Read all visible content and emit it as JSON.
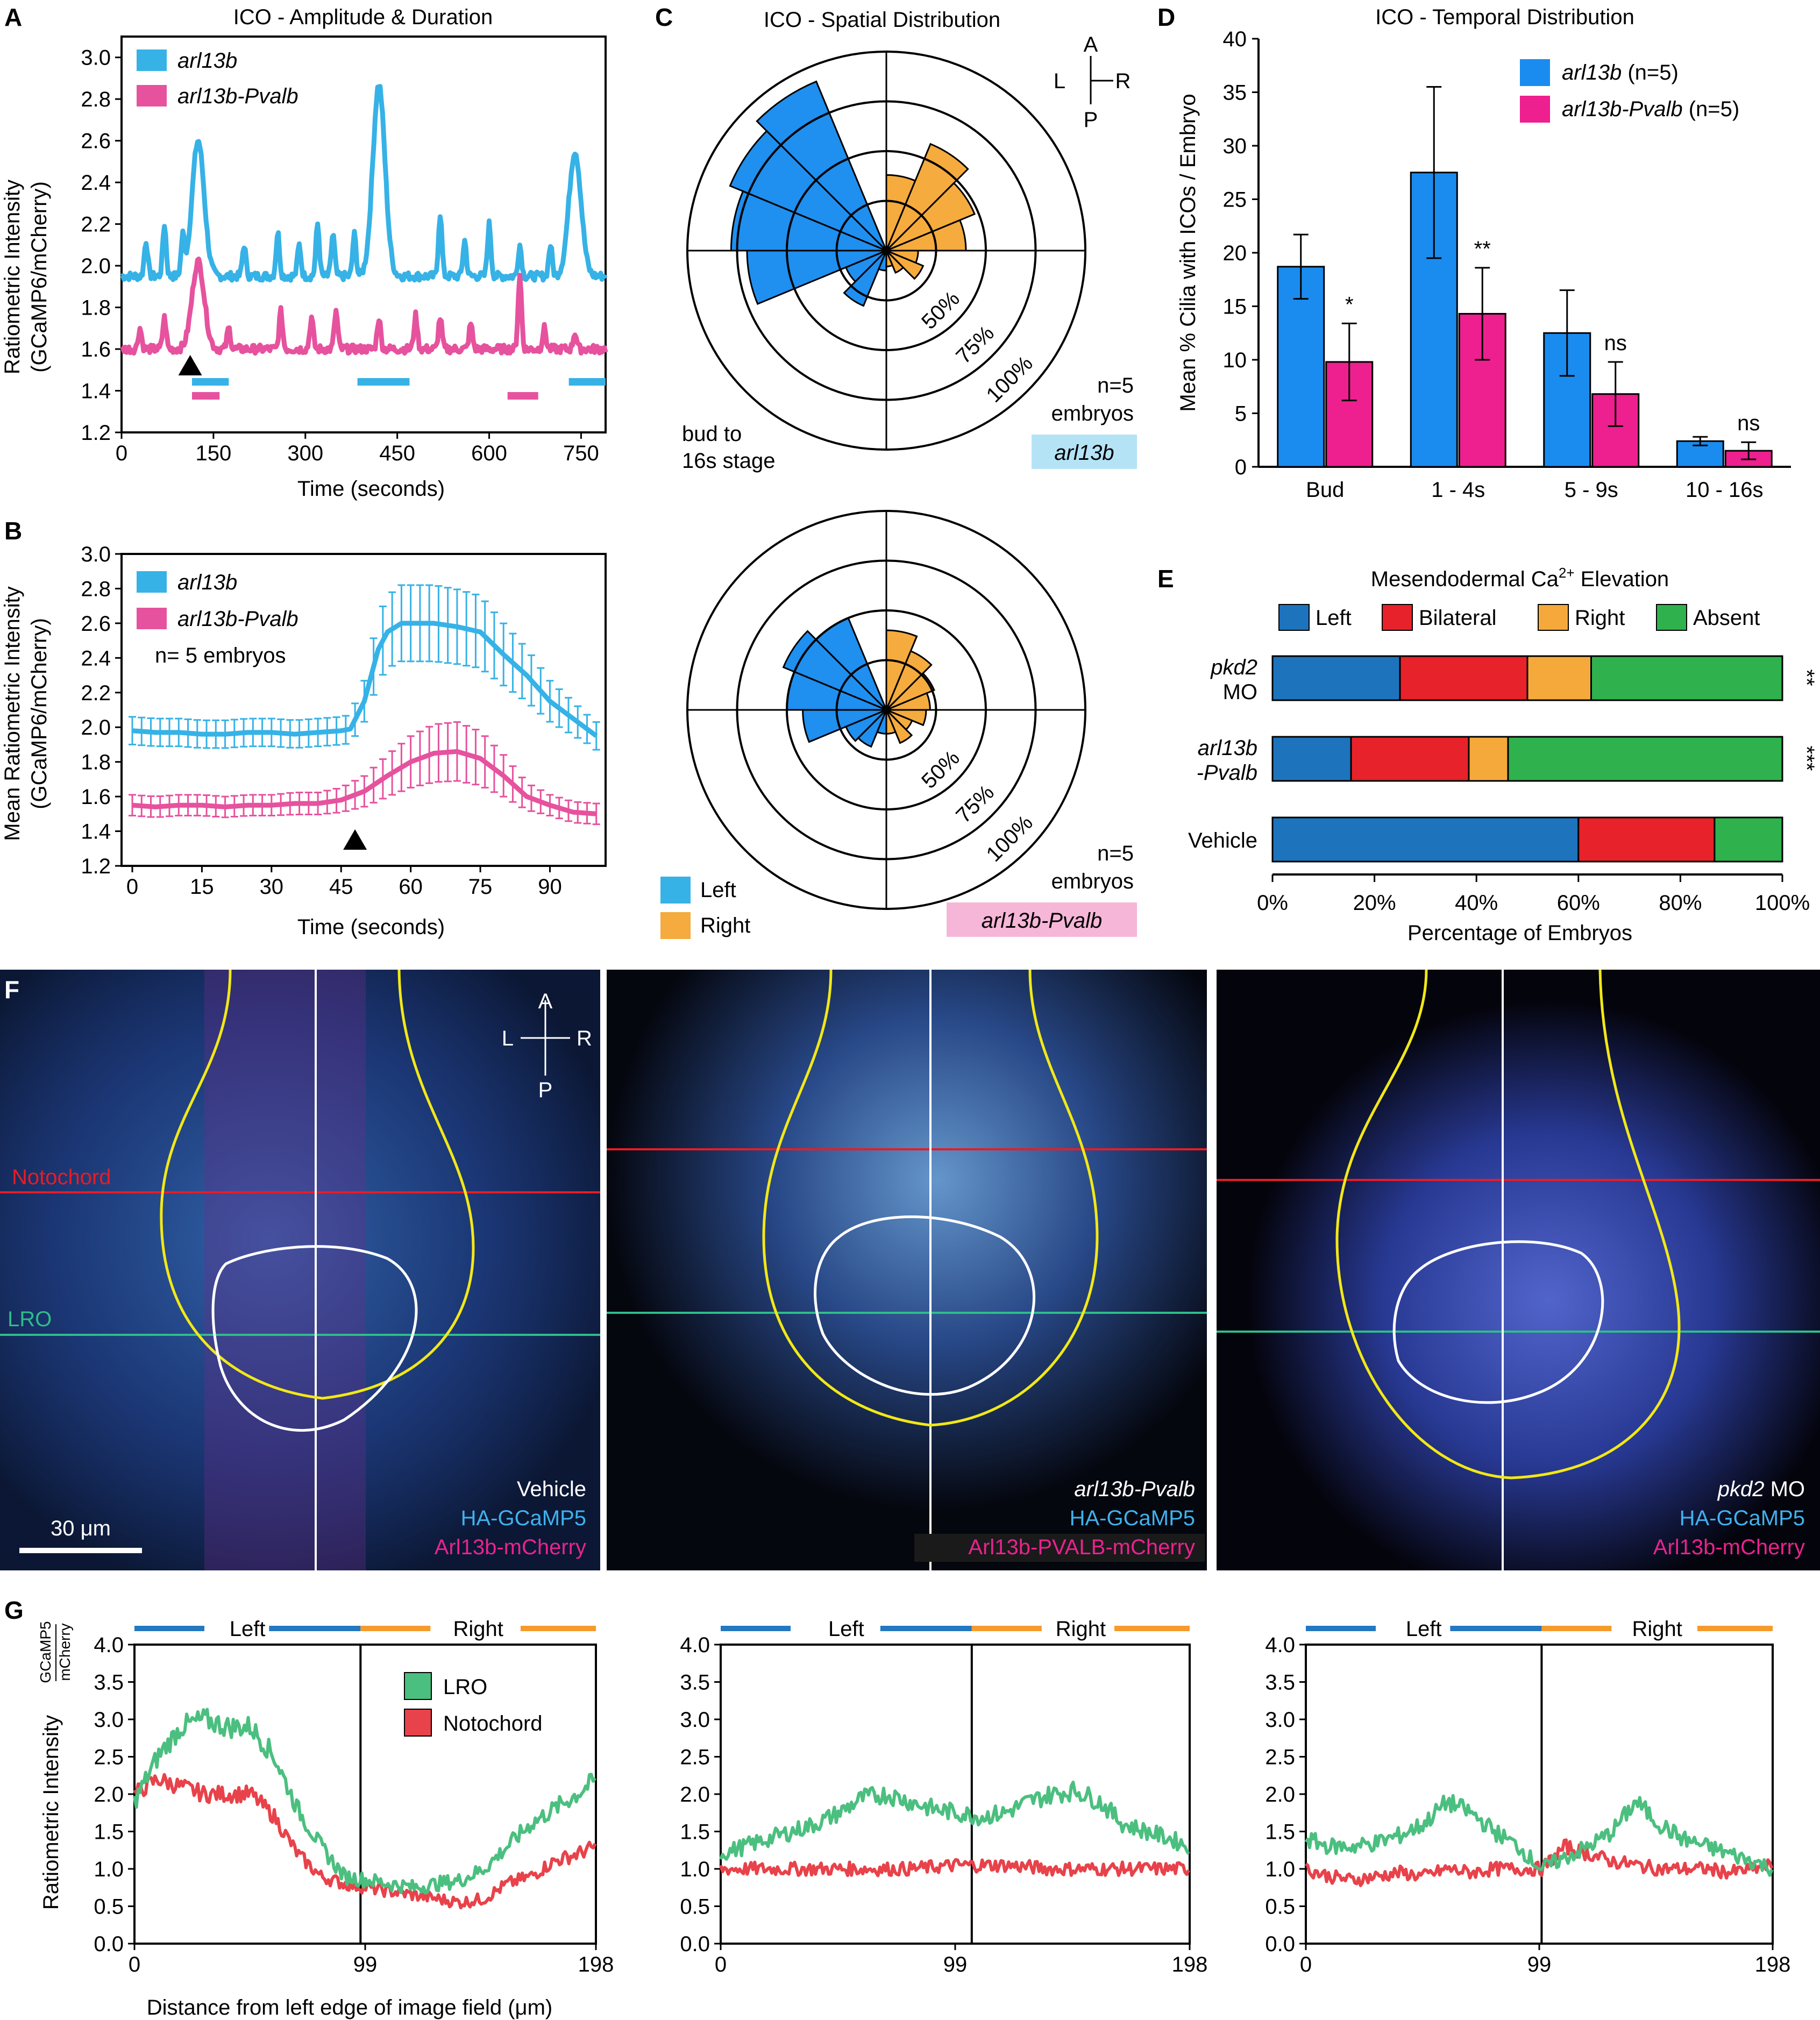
{
  "panel_labels": {
    "a": "A",
    "b": "B",
    "c": "C",
    "d": "D",
    "e": "E",
    "f": "F",
    "g": "G"
  },
  "colors": {
    "arl13b": "#36b2e6",
    "pvalb": "#e6529e",
    "left": "#1f8ff0",
    "right": "#f5ab3d",
    "bar_blue": "#1a8cf0",
    "bar_pink": "#ee1f8f",
    "e_left": "#1e73bd",
    "e_bilateral": "#e8222a",
    "e_right": "#f6a93b",
    "e_absent": "#2fb24e",
    "lro": "#4bbf7f",
    "notochord": "#e8424a",
    "left_bar": "#2378c0",
    "right_bar": "#f59a2d"
  },
  "chart_data": [
    {
      "id": "A",
      "type": "line",
      "title": "ICO - Amplitude & Duration",
      "xlabel": "Time (seconds)",
      "ylabel": [
        "Ratiometric Intensity",
        "(GCaMP6/mCherry)"
      ],
      "xlim": [
        0,
        790
      ],
      "ylim": [
        1.2,
        3.1
      ],
      "xticks": [
        "0",
        "150",
        "300",
        "450",
        "600",
        "750"
      ],
      "yticks": [
        "1.2",
        "1.4",
        "1.6",
        "1.8",
        "2.0",
        "2.2",
        "2.4",
        "2.6",
        "2.8",
        "3.0"
      ],
      "series": [
        {
          "name": "arl13b",
          "baseline": 1.95,
          "peaks": [
            [
              40,
              2.12
            ],
            [
              70,
              2.2
            ],
            [
              100,
              2.13
            ],
            [
              125,
              2.6
            ],
            [
              200,
              2.1
            ],
            [
              255,
              2.16
            ],
            [
              290,
              2.1
            ],
            [
              320,
              2.2
            ],
            [
              345,
              2.15
            ],
            [
              380,
              2.15
            ],
            [
              420,
              2.87
            ],
            [
              520,
              2.25
            ],
            [
              560,
              2.12
            ],
            [
              600,
              2.2
            ],
            [
              650,
              2.1
            ],
            [
              700,
              2.1
            ],
            [
              740,
              2.55
            ]
          ]
        },
        {
          "name": "arl13b-Pvalb",
          "baseline": 1.6,
          "peaks": [
            [
              30,
              1.7
            ],
            [
              70,
              1.75
            ],
            [
              125,
              2.02
            ],
            [
              175,
              1.7
            ],
            [
              260,
              1.78
            ],
            [
              310,
              1.75
            ],
            [
              350,
              1.78
            ],
            [
              420,
              1.75
            ],
            [
              480,
              1.76
            ],
            [
              520,
              1.75
            ],
            [
              570,
              1.72
            ],
            [
              650,
              1.95
            ],
            [
              690,
              1.7
            ],
            [
              740,
              1.68
            ]
          ]
        }
      ],
      "event_bars": {
        "arl13b": [
          [
            115,
            175
          ],
          [
            385,
            470
          ],
          [
            730,
            790
          ]
        ],
        "arl13b-Pvalb": [
          [
            115,
            160
          ],
          [
            630,
            680
          ]
        ]
      },
      "arrow_x": 112
    },
    {
      "id": "B",
      "type": "line",
      "xlabel": "Time (seconds)",
      "ylabel": [
        "Mean Ratiometric Intensity",
        "(GCaMP6/mCherry)"
      ],
      "xlim": [
        0,
        102
      ],
      "ylim": [
        1.2,
        3.0
      ],
      "xticks": [
        "0",
        "15",
        "30",
        "45",
        "60",
        "75",
        "90"
      ],
      "yticks": [
        "1.2",
        "1.4",
        "1.6",
        "1.8",
        "2.0",
        "2.2",
        "2.4",
        "2.6",
        "2.8",
        "3.0"
      ],
      "annotation": "n= 5 embryos",
      "series": [
        {
          "name": "arl13b",
          "x": [
            0,
            5,
            10,
            15,
            20,
            25,
            30,
            35,
            40,
            45,
            47,
            50,
            53,
            55,
            58,
            60,
            65,
            70,
            75,
            80,
            85,
            90,
            95,
            100
          ],
          "y": [
            1.98,
            1.97,
            1.97,
            1.96,
            1.96,
            1.97,
            1.97,
            1.96,
            1.97,
            1.98,
            1.99,
            2.15,
            2.45,
            2.55,
            2.6,
            2.6,
            2.6,
            2.58,
            2.55,
            2.42,
            2.3,
            2.15,
            2.05,
            1.95
          ],
          "err": 0.08,
          "err_peak": 0.22
        },
        {
          "name": "arl13b-Pvalb",
          "x": [
            0,
            5,
            10,
            15,
            20,
            25,
            30,
            35,
            40,
            45,
            47,
            50,
            55,
            60,
            65,
            70,
            75,
            80,
            85,
            90,
            95,
            100
          ],
          "y": [
            1.55,
            1.54,
            1.55,
            1.55,
            1.54,
            1.55,
            1.55,
            1.56,
            1.56,
            1.58,
            1.6,
            1.63,
            1.72,
            1.8,
            1.85,
            1.86,
            1.82,
            1.72,
            1.6,
            1.55,
            1.51,
            1.5
          ],
          "err": 0.06,
          "err_peak": 0.17
        }
      ],
      "arrow_x": 48
    },
    {
      "id": "C1",
      "type": "rose",
      "title": "ICO - Spatial Distribution",
      "rings": [
        "50%",
        "75%",
        "100%"
      ],
      "left_wedges": [
        0.0,
        0.92,
        0.85,
        0.78,
        0.7,
        0.22,
        0.3,
        0.1
      ],
      "right_wedges": [
        0.38,
        0.58,
        0.48,
        0.4,
        0.16,
        0.2,
        0.12,
        0.08
      ],
      "note_top": "bud to",
      "note_bottom": "16s stage",
      "n": "n=5",
      "n2": "embryos",
      "label": "arl13b"
    },
    {
      "id": "C2",
      "type": "rose",
      "rings": [
        "50%",
        "75%",
        "100%"
      ],
      "left_wedges": [
        0.0,
        0.5,
        0.56,
        0.5,
        0.42,
        0.22,
        0.2,
        0.12
      ],
      "right_wedges": [
        0.4,
        0.32,
        0.26,
        0.22,
        0.2,
        0.14,
        0.18,
        0.12
      ],
      "n": "n=5",
      "n2": "embryos",
      "label": "arl13b-Pvalb",
      "legend": [
        "Left",
        "Right"
      ]
    },
    {
      "id": "D",
      "type": "bar",
      "title": "ICO - Temporal Distribution",
      "ylabel": "Mean % Cilia with ICOs / Embryo",
      "ylim": [
        0,
        40
      ],
      "yticks": [
        "0",
        "5",
        "10",
        "15",
        "20",
        "25",
        "30",
        "35",
        "40"
      ],
      "categories": [
        "Bud",
        "1 - 4s",
        "5 - 9s",
        "10 - 16s"
      ],
      "series": [
        {
          "name": "arl13b",
          "n": "(n=5)",
          "values": [
            18.7,
            27.5,
            12.5,
            2.4
          ],
          "errors": [
            3.0,
            8.0,
            4.0,
            0.4
          ]
        },
        {
          "name": "arl13b-Pvalb",
          "n": "(n=5)",
          "values": [
            9.8,
            14.3,
            6.8,
            1.5
          ],
          "errors": [
            3.6,
            4.3,
            3.0,
            0.8
          ]
        }
      ],
      "significance": [
        "*",
        "**",
        "ns",
        "ns"
      ]
    },
    {
      "id": "E",
      "type": "stacked_bar",
      "title": "Mesendodermal Ca2+ Elevation",
      "xlabel": "Percentage of Embryos",
      "xticks": [
        "0%",
        "20%",
        "40%",
        "60%",
        "80%",
        "100%"
      ],
      "segments": [
        "Left",
        "Bilateral",
        "Right",
        "Absent"
      ],
      "rows": [
        {
          "label1": "pkd2",
          "label2": "MO",
          "values": [
            25,
            25,
            12.5,
            37.5
          ],
          "sig": "**"
        },
        {
          "label1": "arl13b",
          "label2": "-Pvalb",
          "values": [
            15.4,
            23.1,
            7.7,
            53.8
          ],
          "sig": "***"
        },
        {
          "label1": "Vehicle",
          "label2": "",
          "values": [
            60,
            26.7,
            0,
            13.3
          ],
          "sig": ""
        }
      ]
    },
    {
      "id": "G",
      "type": "line",
      "ylabel": "Ratiometric Intensity",
      "ylabel_frac_num": "GCaMP5",
      "ylabel_frac_den": "mCherry",
      "xlabel": "Distance from left edge of image field (μm)",
      "xlim": [
        0,
        198
      ],
      "ylim": [
        0,
        4
      ],
      "xticks": [
        "0",
        "99",
        "198"
      ],
      "yticks": [
        "0.0",
        "0.5",
        "1.0",
        "1.5",
        "2.0",
        "2.5",
        "3.0",
        "3.5",
        "4.0"
      ],
      "side_labels": [
        "Left",
        "Right"
      ],
      "legend": [
        "LRO",
        "Notochord"
      ],
      "panels": [
        {
          "divider": 97,
          "LRO": {
            "x": [
              0,
              10,
              20,
              30,
              40,
              50,
              60,
              70,
              80,
              90,
              100,
              110,
              120,
              130,
              140,
              150,
              160,
              170,
              180,
              190,
              198
            ],
            "y": [
              1.9,
              2.5,
              2.9,
              3.0,
              2.9,
              2.9,
              2.5,
              1.8,
              1.3,
              0.9,
              0.85,
              0.8,
              0.75,
              0.8,
              0.85,
              1.0,
              1.3,
              1.6,
              1.8,
              2.0,
              2.2
            ]
          },
          "Notochord": {
            "x": [
              0,
              10,
              20,
              30,
              40,
              50,
              60,
              70,
              80,
              90,
              100,
              110,
              120,
              130,
              140,
              150,
              160,
              170,
              180,
              190,
              198
            ],
            "y": [
              2.0,
              2.2,
              2.1,
              2.0,
              2.0,
              2.0,
              1.7,
              1.2,
              0.9,
              0.8,
              0.75,
              0.7,
              0.65,
              0.6,
              0.55,
              0.6,
              0.8,
              0.9,
              1.1,
              1.2,
              1.3
            ]
          }
        },
        {
          "divider": 106,
          "LRO": {
            "x": [
              0,
              10,
              20,
              30,
              40,
              50,
              60,
              70,
              80,
              90,
              100,
              110,
              120,
              130,
              140,
              150,
              160,
              170,
              180,
              190,
              198
            ],
            "y": [
              1.2,
              1.3,
              1.4,
              1.5,
              1.6,
              1.75,
              1.95,
              2.0,
              1.9,
              1.8,
              1.75,
              1.7,
              1.75,
              1.9,
              2.0,
              2.05,
              1.9,
              1.6,
              1.5,
              1.4,
              1.3
            ]
          },
          "Notochord": {
            "x": [
              0,
              20,
              40,
              60,
              80,
              100,
              120,
              140,
              160,
              180,
              198
            ],
            "y": [
              1.0,
              1.0,
              1.0,
              1.0,
              1.0,
              1.05,
              1.05,
              1.0,
              1.0,
              1.0,
              1.0
            ]
          }
        },
        {
          "divider": 100,
          "LRO": {
            "x": [
              0,
              10,
              20,
              30,
              40,
              50,
              60,
              70,
              80,
              90,
              100,
              110,
              120,
              130,
              140,
              150,
              160,
              170,
              180,
              190,
              198
            ],
            "y": [
              1.4,
              1.3,
              1.3,
              1.35,
              1.45,
              1.6,
              1.9,
              1.75,
              1.5,
              1.3,
              1.0,
              1.15,
              1.3,
              1.5,
              1.9,
              1.6,
              1.4,
              1.3,
              1.2,
              1.1,
              1.0
            ]
          },
          "Notochord": {
            "x": [
              0,
              10,
              20,
              30,
              40,
              50,
              60,
              70,
              80,
              90,
              100,
              110,
              120,
              130,
              140,
              150,
              160,
              170,
              180,
              190,
              198
            ],
            "y": [
              1.0,
              0.9,
              0.85,
              0.9,
              0.95,
              0.9,
              1.0,
              0.95,
              1.0,
              1.0,
              1.0,
              1.3,
              1.2,
              1.1,
              1.05,
              1.0,
              1.0,
              1.0,
              0.95,
              1.0,
              1.05
            ]
          }
        }
      ]
    }
  ],
  "panel_f": {
    "labels": {
      "notochord": "Notochord",
      "lro": "LRO",
      "scale": "30 μm"
    },
    "compass": {
      "a": "A",
      "p": "P",
      "l": "L",
      "r": "R"
    },
    "images": [
      {
        "cond": "Vehicle",
        "reporter": "HA-GCaMP5",
        "cilia": "Arl13b-mCherry"
      },
      {
        "cond": "arl13b-Pvalb",
        "reporter": "HA-GCaMP5",
        "cilia": "Arl13b-PVALB-mCherry"
      },
      {
        "cond": "pkd2 MO",
        "cond_italic": "pkd2",
        "cond_rest": " MO",
        "reporter": "HA-GCaMP5",
        "cilia": "Arl13b-mCherry"
      }
    ]
  },
  "legend_labels": {
    "a_series1": "arl13b",
    "a_series2": "arl13b-Pvalb",
    "d_series1": "arl13b",
    "d_series2": "arl13b-Pvalb",
    "d_n": "(n=5)",
    "e_left": "Left",
    "e_bilateral": "Bilateral",
    "e_right": "Right",
    "e_absent": "Absent",
    "compass_a": "A",
    "compass_p": "P",
    "compass_l": "L",
    "compass_r": "R"
  }
}
